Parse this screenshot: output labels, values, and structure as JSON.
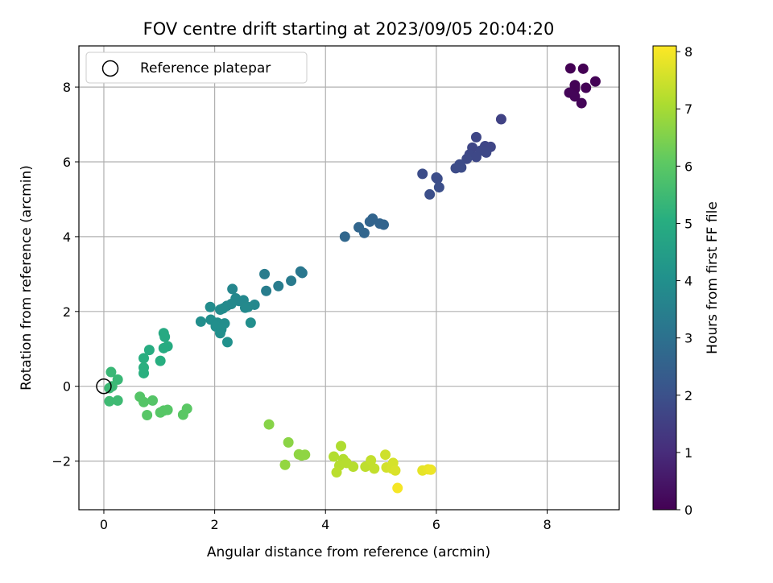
{
  "chart_data": {
    "type": "scatter",
    "title": "FOV centre drift starting at 2023/09/05 20:04:20",
    "xlabel": "Angular distance from reference (arcmin)",
    "ylabel": "Rotation from reference (arcmin)",
    "xlim": [
      -0.45,
      9.3
    ],
    "ylim": [
      -3.3,
      9.1
    ],
    "xticks": [
      0,
      2,
      4,
      6,
      8
    ],
    "yticks": [
      -2,
      0,
      2,
      4,
      6,
      8
    ],
    "grid": true,
    "legend": {
      "position": "top-left",
      "label": "Reference platepar",
      "marker": "open-circle"
    },
    "reference_point": {
      "x": 0,
      "y": 0
    },
    "colorbar": {
      "label": "Hours from first FF file",
      "colormap": "viridis",
      "range": [
        0,
        8.1
      ],
      "ticks": [
        0,
        1,
        2,
        3,
        4,
        5,
        6,
        7,
        8
      ]
    },
    "points": [
      {
        "x": 8.42,
        "y": 8.5,
        "c": 0.0
      },
      {
        "x": 8.65,
        "y": 8.49,
        "c": 0.0
      },
      {
        "x": 8.87,
        "y": 8.15,
        "c": 0.05
      },
      {
        "x": 8.5,
        "y": 8.05,
        "c": 0.05
      },
      {
        "x": 8.5,
        "y": 7.95,
        "c": 0.05
      },
      {
        "x": 8.7,
        "y": 7.98,
        "c": 0.05
      },
      {
        "x": 8.4,
        "y": 7.85,
        "c": 0.1
      },
      {
        "x": 8.5,
        "y": 7.75,
        "c": 0.1
      },
      {
        "x": 8.62,
        "y": 7.57,
        "c": 0.1
      },
      {
        "x": 7.17,
        "y": 7.14,
        "c": 1.6
      },
      {
        "x": 6.72,
        "y": 6.66,
        "c": 1.7
      },
      {
        "x": 6.65,
        "y": 6.38,
        "c": 1.7
      },
      {
        "x": 6.88,
        "y": 6.42,
        "c": 1.7
      },
      {
        "x": 6.98,
        "y": 6.4,
        "c": 1.7
      },
      {
        "x": 6.8,
        "y": 6.3,
        "c": 1.75
      },
      {
        "x": 6.6,
        "y": 6.2,
        "c": 1.75
      },
      {
        "x": 6.9,
        "y": 6.25,
        "c": 1.75
      },
      {
        "x": 6.72,
        "y": 6.13,
        "c": 1.75
      },
      {
        "x": 6.55,
        "y": 6.08,
        "c": 1.8
      },
      {
        "x": 6.42,
        "y": 5.93,
        "c": 1.85
      },
      {
        "x": 6.45,
        "y": 5.85,
        "c": 1.85
      },
      {
        "x": 6.35,
        "y": 5.83,
        "c": 1.85
      },
      {
        "x": 5.75,
        "y": 5.68,
        "c": 1.9
      },
      {
        "x": 6.02,
        "y": 5.55,
        "c": 1.9
      },
      {
        "x": 6.0,
        "y": 5.58,
        "c": 1.9
      },
      {
        "x": 6.05,
        "y": 5.32,
        "c": 1.95
      },
      {
        "x": 5.88,
        "y": 5.13,
        "c": 1.95
      },
      {
        "x": 4.85,
        "y": 4.48,
        "c": 2.6
      },
      {
        "x": 4.8,
        "y": 4.4,
        "c": 2.6
      },
      {
        "x": 4.98,
        "y": 4.35,
        "c": 2.6
      },
      {
        "x": 5.05,
        "y": 4.32,
        "c": 2.6
      },
      {
        "x": 4.6,
        "y": 4.25,
        "c": 2.65
      },
      {
        "x": 4.7,
        "y": 4.1,
        "c": 2.65
      },
      {
        "x": 4.35,
        "y": 4.0,
        "c": 2.7
      },
      {
        "x": 3.55,
        "y": 3.07,
        "c": 3.2
      },
      {
        "x": 3.58,
        "y": 3.03,
        "c": 3.2
      },
      {
        "x": 2.9,
        "y": 3.0,
        "c": 3.35
      },
      {
        "x": 3.38,
        "y": 2.82,
        "c": 3.3
      },
      {
        "x": 3.15,
        "y": 2.68,
        "c": 3.35
      },
      {
        "x": 2.93,
        "y": 2.55,
        "c": 3.4
      },
      {
        "x": 2.32,
        "y": 2.6,
        "c": 3.7
      },
      {
        "x": 2.38,
        "y": 2.35,
        "c": 3.75
      },
      {
        "x": 2.52,
        "y": 2.3,
        "c": 3.75
      },
      {
        "x": 2.44,
        "y": 2.28,
        "c": 3.75
      },
      {
        "x": 2.3,
        "y": 2.2,
        "c": 3.8
      },
      {
        "x": 2.22,
        "y": 2.15,
        "c": 3.8
      },
      {
        "x": 2.72,
        "y": 2.18,
        "c": 3.75
      },
      {
        "x": 2.6,
        "y": 2.12,
        "c": 3.8
      },
      {
        "x": 2.55,
        "y": 2.1,
        "c": 3.8
      },
      {
        "x": 2.1,
        "y": 2.05,
        "c": 3.85
      },
      {
        "x": 2.15,
        "y": 2.08,
        "c": 3.85
      },
      {
        "x": 1.92,
        "y": 2.12,
        "c": 3.9
      },
      {
        "x": 1.93,
        "y": 1.78,
        "c": 3.95
      },
      {
        "x": 1.75,
        "y": 1.73,
        "c": 3.95
      },
      {
        "x": 2.05,
        "y": 1.7,
        "c": 3.95
      },
      {
        "x": 2.18,
        "y": 1.68,
        "c": 3.95
      },
      {
        "x": 2.02,
        "y": 1.6,
        "c": 4.0
      },
      {
        "x": 2.12,
        "y": 1.52,
        "c": 4.0
      },
      {
        "x": 2.65,
        "y": 1.7,
        "c": 3.95
      },
      {
        "x": 2.1,
        "y": 1.42,
        "c": 4.0
      },
      {
        "x": 2.23,
        "y": 1.18,
        "c": 4.05
      },
      {
        "x": 1.08,
        "y": 1.42,
        "c": 4.9
      },
      {
        "x": 1.1,
        "y": 1.32,
        "c": 4.9
      },
      {
        "x": 1.15,
        "y": 1.07,
        "c": 4.95
      },
      {
        "x": 1.08,
        "y": 1.02,
        "c": 4.95
      },
      {
        "x": 0.82,
        "y": 0.97,
        "c": 5.0
      },
      {
        "x": 0.72,
        "y": 0.75,
        "c": 5.05
      },
      {
        "x": 1.02,
        "y": 0.68,
        "c": 5.05
      },
      {
        "x": 0.72,
        "y": 0.5,
        "c": 5.1
      },
      {
        "x": 0.72,
        "y": 0.35,
        "c": 5.1
      },
      {
        "x": 0.13,
        "y": 0.38,
        "c": 5.4
      },
      {
        "x": 0.25,
        "y": 0.18,
        "c": 5.4
      },
      {
        "x": 0.15,
        "y": 0.0,
        "c": 5.45
      },
      {
        "x": 0.1,
        "y": -0.05,
        "c": 5.45
      },
      {
        "x": 0.1,
        "y": -0.4,
        "c": 5.5
      },
      {
        "x": 0.25,
        "y": -0.38,
        "c": 5.5
      },
      {
        "x": 0.65,
        "y": -0.28,
        "c": 5.9
      },
      {
        "x": 0.72,
        "y": -0.42,
        "c": 5.9
      },
      {
        "x": 0.88,
        "y": -0.38,
        "c": 5.9
      },
      {
        "x": 1.08,
        "y": -0.65,
        "c": 5.95
      },
      {
        "x": 1.02,
        "y": -0.7,
        "c": 5.95
      },
      {
        "x": 1.15,
        "y": -0.63,
        "c": 5.95
      },
      {
        "x": 0.78,
        "y": -0.77,
        "c": 5.95
      },
      {
        "x": 1.5,
        "y": -0.6,
        "c": 6.0
      },
      {
        "x": 1.43,
        "y": -0.76,
        "c": 6.0
      },
      {
        "x": 2.98,
        "y": -1.02,
        "c": 6.6
      },
      {
        "x": 3.33,
        "y": -1.5,
        "c": 6.65
      },
      {
        "x": 3.52,
        "y": -1.82,
        "c": 6.7
      },
      {
        "x": 3.57,
        "y": -1.85,
        "c": 6.7
      },
      {
        "x": 3.63,
        "y": -1.83,
        "c": 6.7
      },
      {
        "x": 3.27,
        "y": -2.1,
        "c": 6.75
      },
      {
        "x": 4.28,
        "y": -1.6,
        "c": 7.1
      },
      {
        "x": 4.15,
        "y": -1.88,
        "c": 7.15
      },
      {
        "x": 4.32,
        "y": -1.95,
        "c": 7.15
      },
      {
        "x": 4.38,
        "y": -2.05,
        "c": 7.2
      },
      {
        "x": 4.25,
        "y": -2.12,
        "c": 7.2
      },
      {
        "x": 4.5,
        "y": -2.15,
        "c": 7.2
      },
      {
        "x": 4.2,
        "y": -2.3,
        "c": 7.25
      },
      {
        "x": 4.72,
        "y": -2.15,
        "c": 7.3
      },
      {
        "x": 4.82,
        "y": -1.98,
        "c": 7.35
      },
      {
        "x": 4.88,
        "y": -2.2,
        "c": 7.35
      },
      {
        "x": 5.08,
        "y": -1.83,
        "c": 7.5
      },
      {
        "x": 5.1,
        "y": -2.17,
        "c": 7.55
      },
      {
        "x": 5.22,
        "y": -2.05,
        "c": 7.6
      },
      {
        "x": 5.2,
        "y": -2.2,
        "c": 7.6
      },
      {
        "x": 5.26,
        "y": -2.25,
        "c": 7.65
      },
      {
        "x": 5.75,
        "y": -2.25,
        "c": 7.8
      },
      {
        "x": 5.85,
        "y": -2.22,
        "c": 7.85
      },
      {
        "x": 5.9,
        "y": -2.23,
        "c": 7.9
      },
      {
        "x": 5.3,
        "y": -2.72,
        "c": 8.0
      }
    ]
  }
}
